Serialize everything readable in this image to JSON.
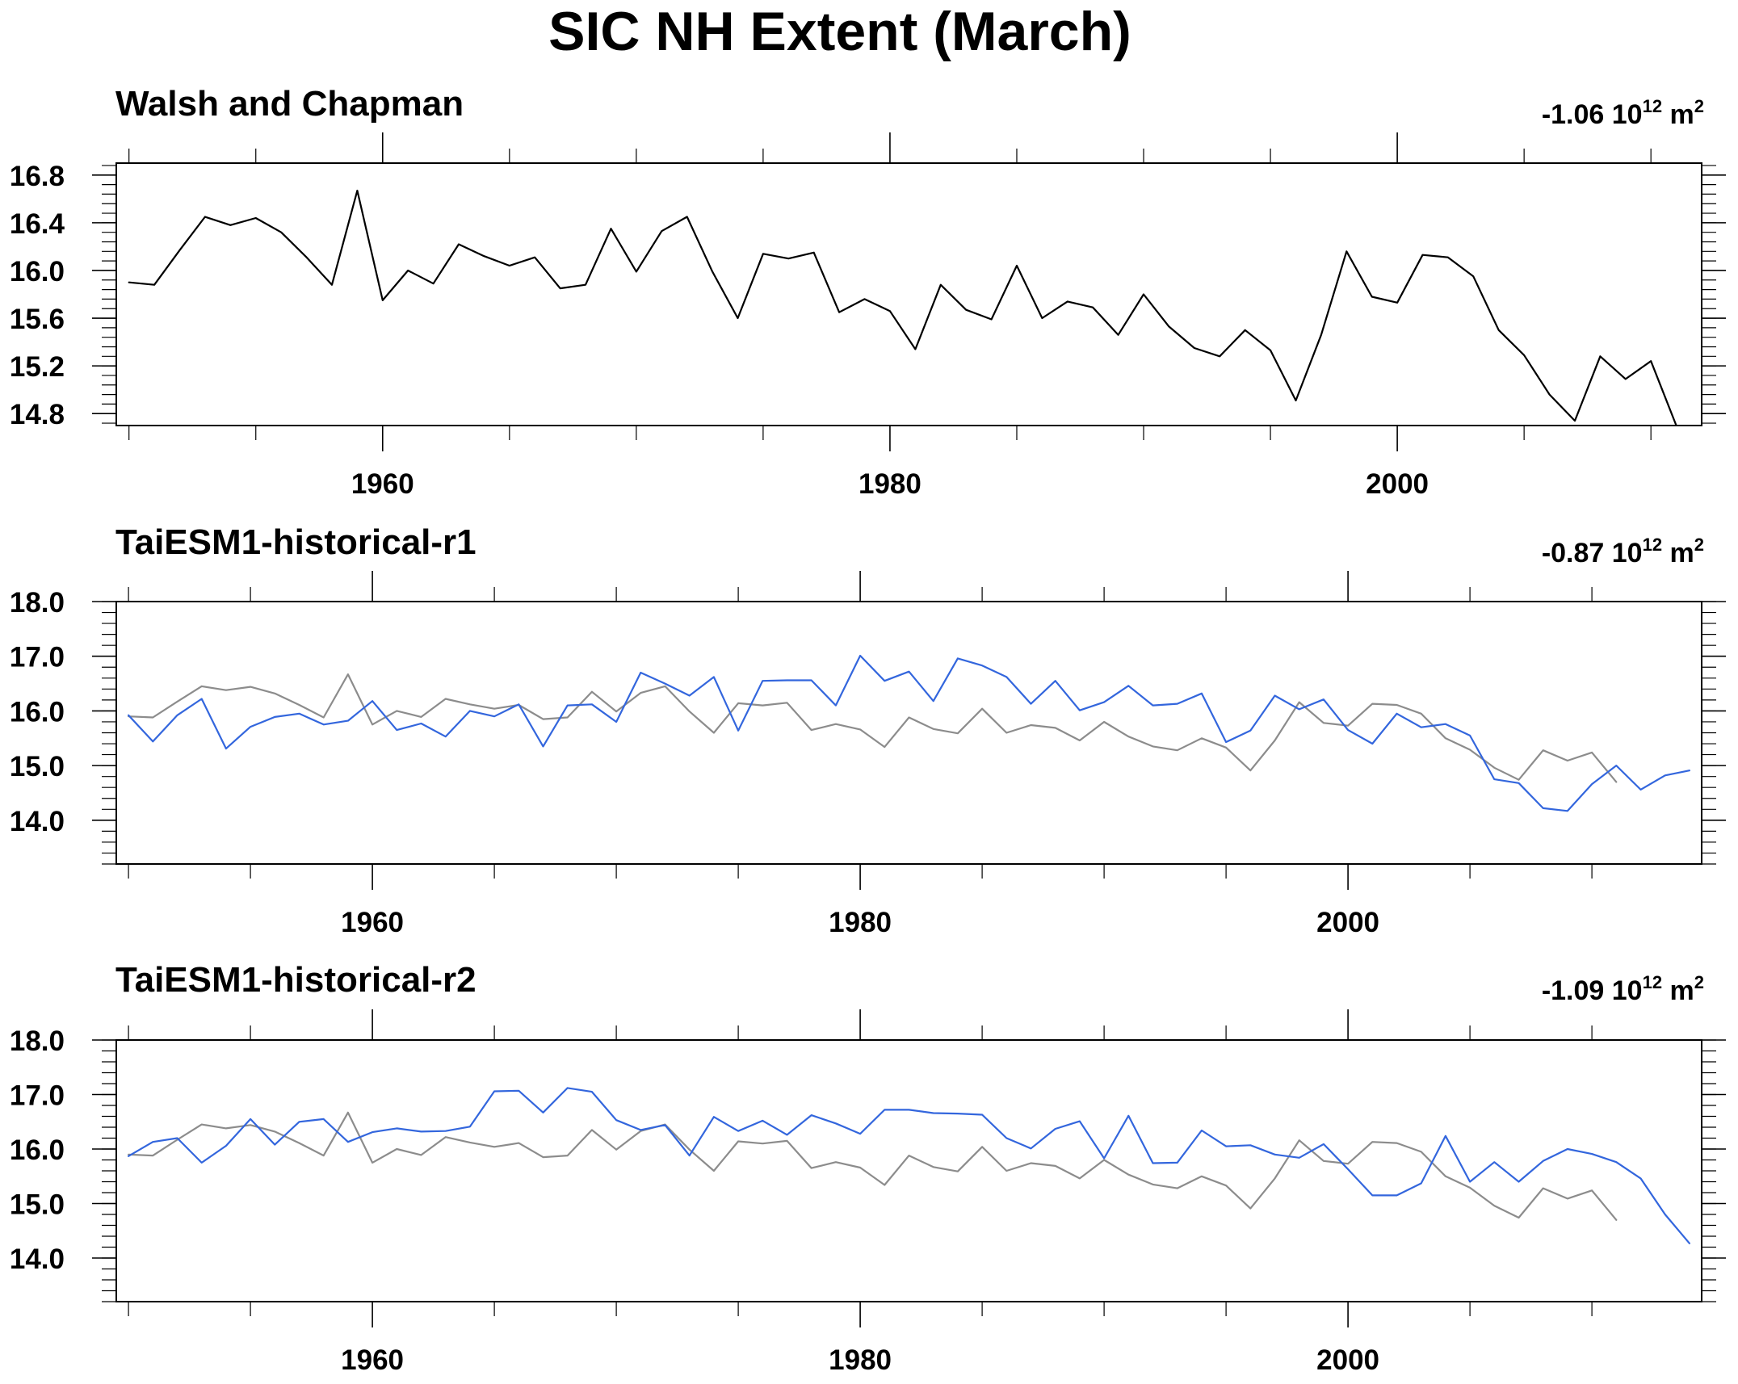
{
  "title": "SIC NH Extent (March)",
  "colors": {
    "observed": "#000000",
    "observed_ref": "#8c8c8c",
    "model": "#3366dd"
  },
  "chart_data": [
    {
      "type": "line",
      "title": "Walsh and Chapman",
      "trend": "-1.06 10",
      "trend_exp": "12",
      "trend_unit": " m",
      "trend_unit_exp": "2",
      "xlim": [
        1949.5,
        2012
      ],
      "ylim": [
        14.7,
        16.9
      ],
      "yticks": [
        14.8,
        15.2,
        15.6,
        16.0,
        16.4,
        16.8
      ],
      "ytick_labels": [
        "14.8",
        "15.2",
        "15.6",
        "16.0",
        "16.4",
        "16.8"
      ],
      "xticks": [
        1960,
        1980,
        2000
      ],
      "xtick_labels": [
        "1960",
        "1980",
        "2000"
      ],
      "series": [
        {
          "role": "observed",
          "x_start": 1950,
          "values": [
            15.9,
            15.88,
            16.17,
            16.45,
            16.38,
            16.44,
            16.32,
            16.11,
            15.88,
            16.67,
            15.75,
            16.0,
            15.89,
            16.22,
            16.12,
            16.04,
            16.11,
            15.85,
            15.88,
            16.35,
            15.99,
            16.33,
            16.45,
            15.99,
            15.6,
            16.14,
            16.1,
            16.15,
            15.65,
            15.76,
            15.66,
            15.34,
            15.88,
            15.67,
            15.59,
            16.04,
            15.6,
            15.74,
            15.69,
            15.46,
            15.8,
            15.53,
            15.35,
            15.28,
            15.5,
            15.33,
            14.91,
            15.46,
            16.16,
            15.78,
            15.73,
            16.13,
            16.11,
            15.95,
            15.5,
            15.29,
            14.96,
            14.74,
            15.28,
            15.09,
            15.24,
            14.7
          ]
        }
      ]
    },
    {
      "type": "line",
      "title": "TaiESM1-historical-r1",
      "trend": "-0.87 10",
      "trend_exp": "12",
      "trend_unit": " m",
      "trend_unit_exp": "2",
      "xlim": [
        1949.5,
        2014.5
      ],
      "ylim": [
        13.2,
        18.0
      ],
      "yticks": [
        14.0,
        15.0,
        16.0,
        17.0,
        18.0
      ],
      "ytick_labels": [
        "14.0",
        "15.0",
        "16.0",
        "17.0",
        "18.0"
      ],
      "xticks": [
        1960,
        1980,
        2000
      ],
      "xtick_labels": [
        "1960",
        "1980",
        "2000"
      ],
      "series": [
        {
          "role": "observed_ref",
          "x_start": 1950,
          "values": [
            15.9,
            15.88,
            16.17,
            16.45,
            16.38,
            16.44,
            16.32,
            16.11,
            15.88,
            16.67,
            15.75,
            16.0,
            15.89,
            16.22,
            16.12,
            16.04,
            16.11,
            15.85,
            15.88,
            16.35,
            15.99,
            16.33,
            16.45,
            15.99,
            15.6,
            16.14,
            16.1,
            16.15,
            15.65,
            15.76,
            15.66,
            15.34,
            15.88,
            15.67,
            15.59,
            16.04,
            15.6,
            15.74,
            15.69,
            15.46,
            15.8,
            15.53,
            15.35,
            15.28,
            15.5,
            15.33,
            14.91,
            15.46,
            16.16,
            15.78,
            15.73,
            16.13,
            16.11,
            15.95,
            15.5,
            15.29,
            14.96,
            14.74,
            15.28,
            15.09,
            15.24,
            14.7
          ]
        },
        {
          "role": "model",
          "x_start": 1950,
          "values": [
            15.92,
            15.44,
            15.92,
            16.22,
            15.31,
            15.71,
            15.89,
            15.95,
            15.75,
            15.82,
            16.18,
            15.65,
            15.77,
            15.53,
            16.0,
            15.9,
            16.12,
            15.35,
            16.1,
            16.12,
            15.8,
            16.7,
            16.5,
            16.28,
            16.62,
            15.64,
            16.55,
            16.56,
            16.56,
            16.1,
            17.01,
            16.55,
            16.72,
            16.18,
            16.96,
            16.83,
            16.62,
            16.13,
            16.55,
            16.01,
            16.16,
            16.46,
            16.1,
            16.13,
            16.32,
            15.43,
            15.64,
            16.28,
            16.03,
            16.21,
            15.65,
            15.4,
            15.95,
            15.7,
            15.76,
            15.55,
            14.75,
            14.68,
            14.22,
            14.17,
            14.66,
            15.0,
            14.56,
            14.82,
            14.91
          ]
        }
      ]
    },
    {
      "type": "line",
      "title": "TaiESM1-historical-r2",
      "trend": "-1.09 10",
      "trend_exp": "12",
      "trend_unit": " m",
      "trend_unit_exp": "2",
      "xlim": [
        1949.5,
        2014.5
      ],
      "ylim": [
        13.2,
        18.0
      ],
      "yticks": [
        14.0,
        15.0,
        16.0,
        17.0,
        18.0
      ],
      "ytick_labels": [
        "14.0",
        "15.0",
        "16.0",
        "17.0",
        "18.0"
      ],
      "xticks": [
        1960,
        1980,
        2000
      ],
      "xtick_labels": [
        "1960",
        "1980",
        "2000"
      ],
      "series": [
        {
          "role": "observed_ref",
          "x_start": 1950,
          "values": [
            15.9,
            15.88,
            16.17,
            16.45,
            16.38,
            16.44,
            16.32,
            16.11,
            15.88,
            16.67,
            15.75,
            16.0,
            15.89,
            16.22,
            16.12,
            16.04,
            16.11,
            15.85,
            15.88,
            16.35,
            15.99,
            16.33,
            16.45,
            15.99,
            15.6,
            16.14,
            16.1,
            16.15,
            15.65,
            15.76,
            15.66,
            15.34,
            15.88,
            15.67,
            15.59,
            16.04,
            15.6,
            15.74,
            15.69,
            15.46,
            15.8,
            15.53,
            15.35,
            15.28,
            15.5,
            15.33,
            14.91,
            15.46,
            16.16,
            15.78,
            15.73,
            16.13,
            16.11,
            15.95,
            15.5,
            15.29,
            14.96,
            14.74,
            15.28,
            15.09,
            15.24,
            14.7
          ]
        },
        {
          "role": "model",
          "x_start": 1950,
          "values": [
            15.87,
            16.13,
            16.2,
            15.75,
            16.06,
            16.55,
            16.08,
            16.5,
            16.55,
            16.13,
            16.31,
            16.38,
            16.32,
            16.33,
            16.41,
            17.06,
            17.07,
            16.67,
            17.12,
            17.05,
            16.53,
            16.35,
            16.44,
            15.88,
            16.59,
            16.33,
            16.52,
            16.26,
            16.62,
            16.47,
            16.28,
            16.72,
            16.72,
            16.66,
            16.65,
            16.63,
            16.2,
            16.01,
            16.37,
            16.51,
            15.83,
            16.61,
            15.74,
            15.75,
            16.34,
            16.05,
            16.07,
            15.9,
            15.84,
            16.09,
            15.63,
            15.15,
            15.15,
            15.37,
            16.24,
            15.4,
            15.76,
            15.4,
            15.78,
            16.0,
            15.91,
            15.76,
            15.46,
            14.8,
            14.27
          ]
        }
      ]
    }
  ]
}
